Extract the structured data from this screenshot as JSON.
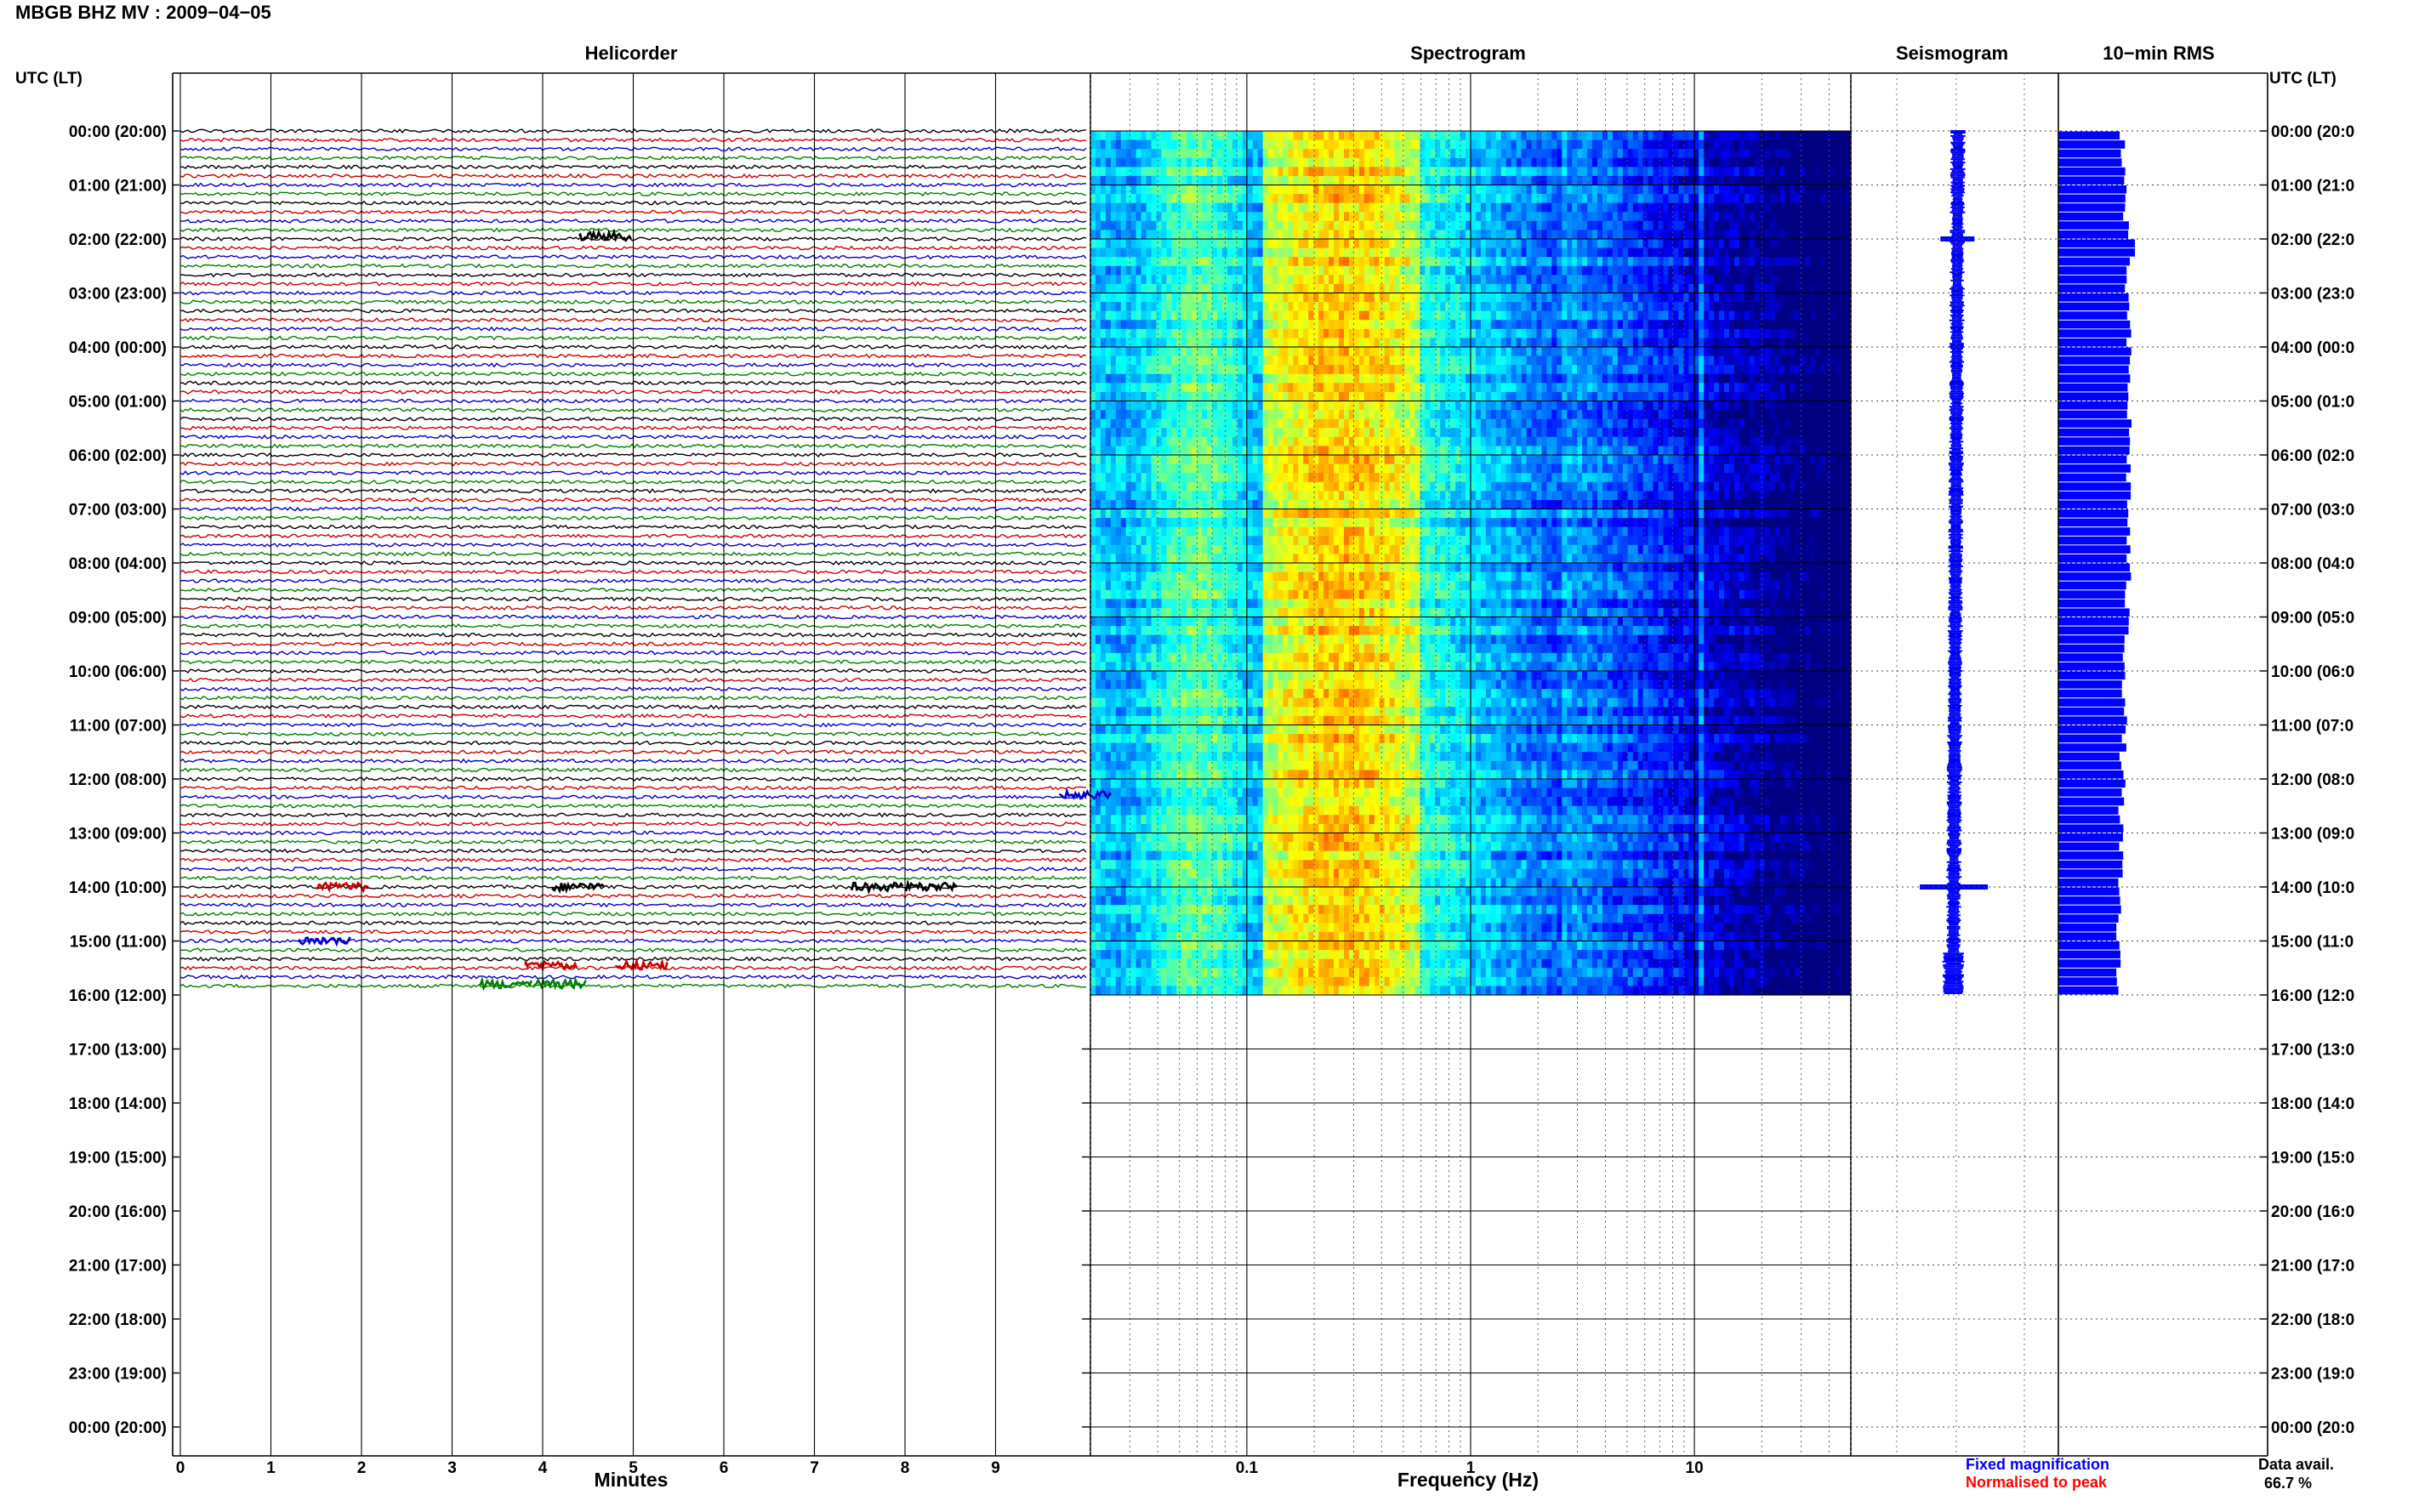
{
  "header": {
    "title": "MBGB BHZ MV : 2009−04−05"
  },
  "panels": {
    "helicorder": "Helicorder",
    "spectrogram": "Spectrogram",
    "seismogram": "Seismogram",
    "rms": "10−min RMS"
  },
  "axes": {
    "left_label": "UTC (LT)",
    "right_label": "UTC (LT)",
    "helicorder_xlabel": "Minutes",
    "spectrogram_xlabel": "Frequency (Hz)"
  },
  "legend": {
    "fixed": "Fixed magnification",
    "normalised": "Normalised to peak",
    "fixed_color": "#0000ff",
    "normalised_color": "#ff0000"
  },
  "availability": {
    "label": "Data avail.",
    "value": "66.7 %"
  },
  "chart_data": {
    "type": "heatmap",
    "title": "MBGB BHZ MV : 2009−04−05",
    "time_ticks_left": [
      "00:00 (20:00)",
      "01:00 (21:00)",
      "02:00 (22:00)",
      "03:00 (23:00)",
      "04:00 (00:00)",
      "05:00 (01:00)",
      "06:00 (02:00)",
      "07:00 (03:00)",
      "08:00 (04:00)",
      "09:00 (05:00)",
      "10:00 (06:00)",
      "11:00 (07:00)",
      "12:00 (08:00)",
      "13:00 (09:00)",
      "14:00 (10:00)",
      "15:00 (11:00)",
      "16:00 (12:00)",
      "17:00 (13:00)",
      "18:00 (14:00)",
      "19:00 (15:00)",
      "20:00 (16:00)",
      "21:00 (17:00)",
      "22:00 (18:00)",
      "23:00 (19:00)",
      "00:00 (20:00)"
    ],
    "time_ticks_right": [
      "00:00 (20:0",
      "01:00 (21:0",
      "02:00 (22:0",
      "03:00 (23:0",
      "04:00 (00:0",
      "05:00 (01:0",
      "06:00 (02:0",
      "07:00 (03:0",
      "08:00 (04:0",
      "09:00 (05:0",
      "10:00 (06:0",
      "11:00 (07:0",
      "12:00 (08:0",
      "13:00 (09:0",
      "14:00 (10:0",
      "15:00 (11:0",
      "16:00 (12:0",
      "17:00 (13:0",
      "18:00 (14:0",
      "19:00 (15:0",
      "20:00 (16:0",
      "21:00 (17:0",
      "22:00 (18:0",
      "23:00 (19:0",
      "00:00 (20:0"
    ],
    "data_hours": 16,
    "helicorder": {
      "xlabel": "Minutes",
      "xlim": [
        0,
        10
      ],
      "xticks": [
        0,
        1,
        2,
        3,
        4,
        5,
        6,
        7,
        8,
        9
      ],
      "lines_per_hour": 6,
      "trace_colors": [
        "#000000",
        "#cc0000",
        "#0000cc",
        "#008000"
      ],
      "events": [
        {
          "hour": 1.95,
          "minute": 4.6,
          "color": "#000000"
        },
        {
          "hour": 14.0,
          "minute": 1.7,
          "color": "#cc0000"
        },
        {
          "hour": 14.0,
          "minute": 4.3,
          "color": "#000000"
        },
        {
          "hour": 14.0,
          "minute": 8.2,
          "color": "#000000"
        },
        {
          "hour": 14.0,
          "minute": 7.6,
          "color": "#000000"
        },
        {
          "hour": 15.0,
          "minute": 1.5,
          "color": "#0000cc"
        },
        {
          "hour": 15.45,
          "minute": 4.0,
          "color": "#cc0000"
        },
        {
          "hour": 15.45,
          "minute": 5.0,
          "color": "#cc0000"
        },
        {
          "hour": 15.8,
          "minute": 3.5,
          "color": "#008000"
        },
        {
          "hour": 15.8,
          "minute": 4.1,
          "color": "#008000"
        },
        {
          "hour": 12.3,
          "minute": 9.9,
          "color": "#0000cc"
        }
      ]
    },
    "spectrogram": {
      "xlabel": "Frequency (Hz)",
      "scale": "log",
      "xlim": [
        0.02,
        50
      ],
      "xticks": [
        0.1,
        1,
        10
      ],
      "xtick_labels": [
        "0.1",
        "1",
        "10"
      ],
      "colormap": "jet",
      "dominant_band_hz": [
        0.12,
        0.6
      ],
      "spectral_line_hz": 10.5
    },
    "seismogram": {
      "color": "#0000ff"
    },
    "rms": {
      "color": "#0000ff"
    }
  }
}
